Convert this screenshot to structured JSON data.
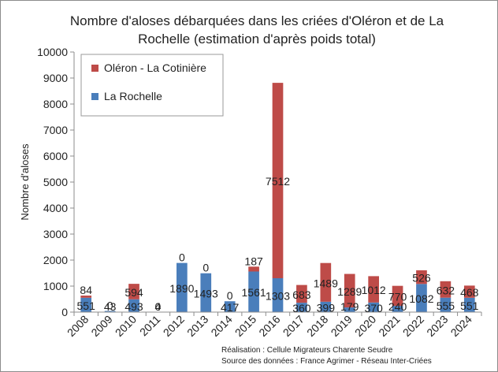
{
  "chart_data": {
    "type": "bar",
    "stacked": true,
    "title_lines": [
      "Nombre d'aloses débarquées dans les criées d'Oléron et de La",
      "Rochelle (estimation d'après poids total)"
    ],
    "ylabel": "Nombre d'aloses",
    "ylim": [
      0,
      10000
    ],
    "yticks": [
      "0",
      "1000",
      "2000",
      "3000",
      "4000",
      "5000",
      "6000",
      "7000",
      "8000",
      "9000",
      "10000"
    ],
    "grid": false,
    "legend_position": "top-left",
    "categories": [
      "2008",
      "2009",
      "2010",
      "2011",
      "2012",
      "2013",
      "2014",
      "2015",
      "2016",
      "2017",
      "2018",
      "2019",
      "2020",
      "2021",
      "2022",
      "2023",
      "2024"
    ],
    "series": [
      {
        "name": "La Rochelle",
        "color": "#4a7ebb",
        "values": [
          551,
          43,
          493,
          4,
          1890,
          1493,
          417,
          1561,
          1303,
          360,
          399,
          179,
          370,
          240,
          1082,
          555,
          551
        ],
        "labels": [
          "551",
          "43",
          "493",
          "4",
          "1890",
          "1493",
          "417",
          "1561",
          "1303",
          "360",
          "399",
          "179",
          "370",
          "240",
          "1082",
          "555",
          "551"
        ]
      },
      {
        "name": "Oléron - La Cotinière",
        "color": "#be4b48",
        "values": [
          84,
          0,
          594,
          0,
          0,
          0,
          0,
          187,
          7512,
          683,
          1489,
          1289,
          1012,
          770,
          526,
          632,
          468
        ],
        "labels": [
          "84",
          "0",
          "594",
          "0",
          "0",
          "0",
          "0",
          "187",
          "7512",
          "683",
          "1489",
          "1289",
          "1012",
          "770",
          "526",
          "632",
          "468"
        ]
      }
    ],
    "footnotes": [
      "Réalisation : Cellule Migrateurs Charente Seudre",
      "Source des données : France Agrimer - Réseau Inter-Criées"
    ]
  }
}
